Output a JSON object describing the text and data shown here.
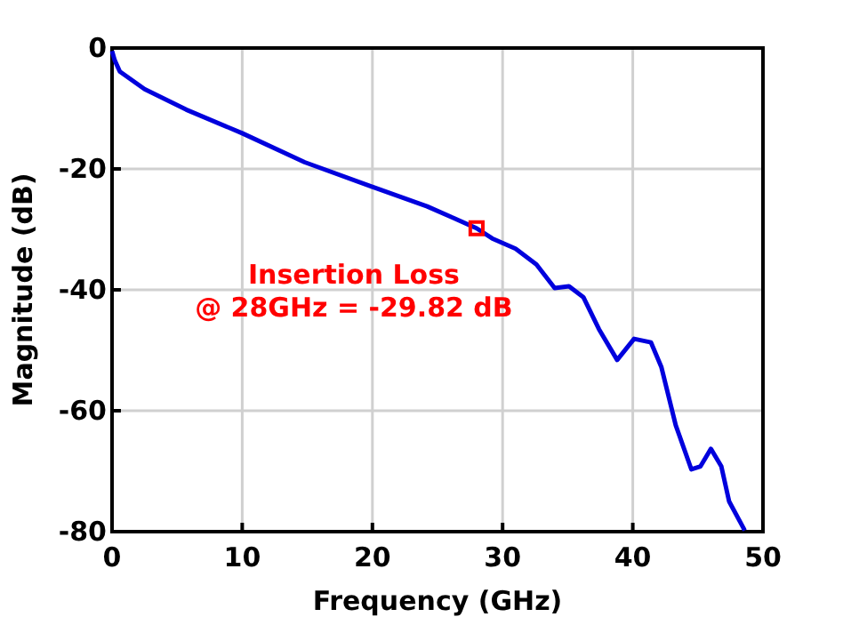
{
  "chart_data": {
    "type": "line",
    "xlabel": "Frequency (GHz)",
    "ylabel": "Magnitude (dB)",
    "xlim": [
      0,
      50
    ],
    "xticks": [
      0,
      10,
      20,
      30,
      40,
      50
    ],
    "ylim": [
      -80,
      0
    ],
    "yticks": [
      -80,
      -60,
      -40,
      -20,
      0
    ],
    "grid": true,
    "series": [
      {
        "color": "#0000dd",
        "x": [
          0,
          0.2,
          0.6,
          2.5,
          5.7,
          10.0,
          14.8,
          19.8,
          24.2,
          26.2,
          28.0,
          29.2,
          31.0,
          32.6,
          34.0,
          35.1,
          36.2,
          37.4,
          38.8,
          40.1,
          41.4,
          42.2,
          43.3,
          44.5,
          45.2,
          46.0,
          46.8,
          47.4,
          48.6
        ],
        "values": [
          -0.5,
          -2.0,
          -3.9,
          -6.8,
          -10.2,
          -14.1,
          -18.9,
          -22.8,
          -26.2,
          -28.1,
          -29.82,
          -31.5,
          -33.2,
          -35.8,
          -39.7,
          -39.4,
          -41.2,
          -46.5,
          -51.6,
          -48.1,
          -48.7,
          -52.8,
          -62.4,
          -69.7,
          -69.2,
          -66.3,
          -69.2,
          -75.0,
          -79.8
        ]
      },
      {
        "type": "scatter",
        "color": "#ff0000",
        "marker": "square",
        "x": [
          28
        ],
        "values": [
          -29.82
        ]
      }
    ],
    "annotations": [
      {
        "text": "Insertion Loss\n@ 28GHz = -29.82 dB",
        "x": 28,
        "y": -29.82
      }
    ]
  }
}
